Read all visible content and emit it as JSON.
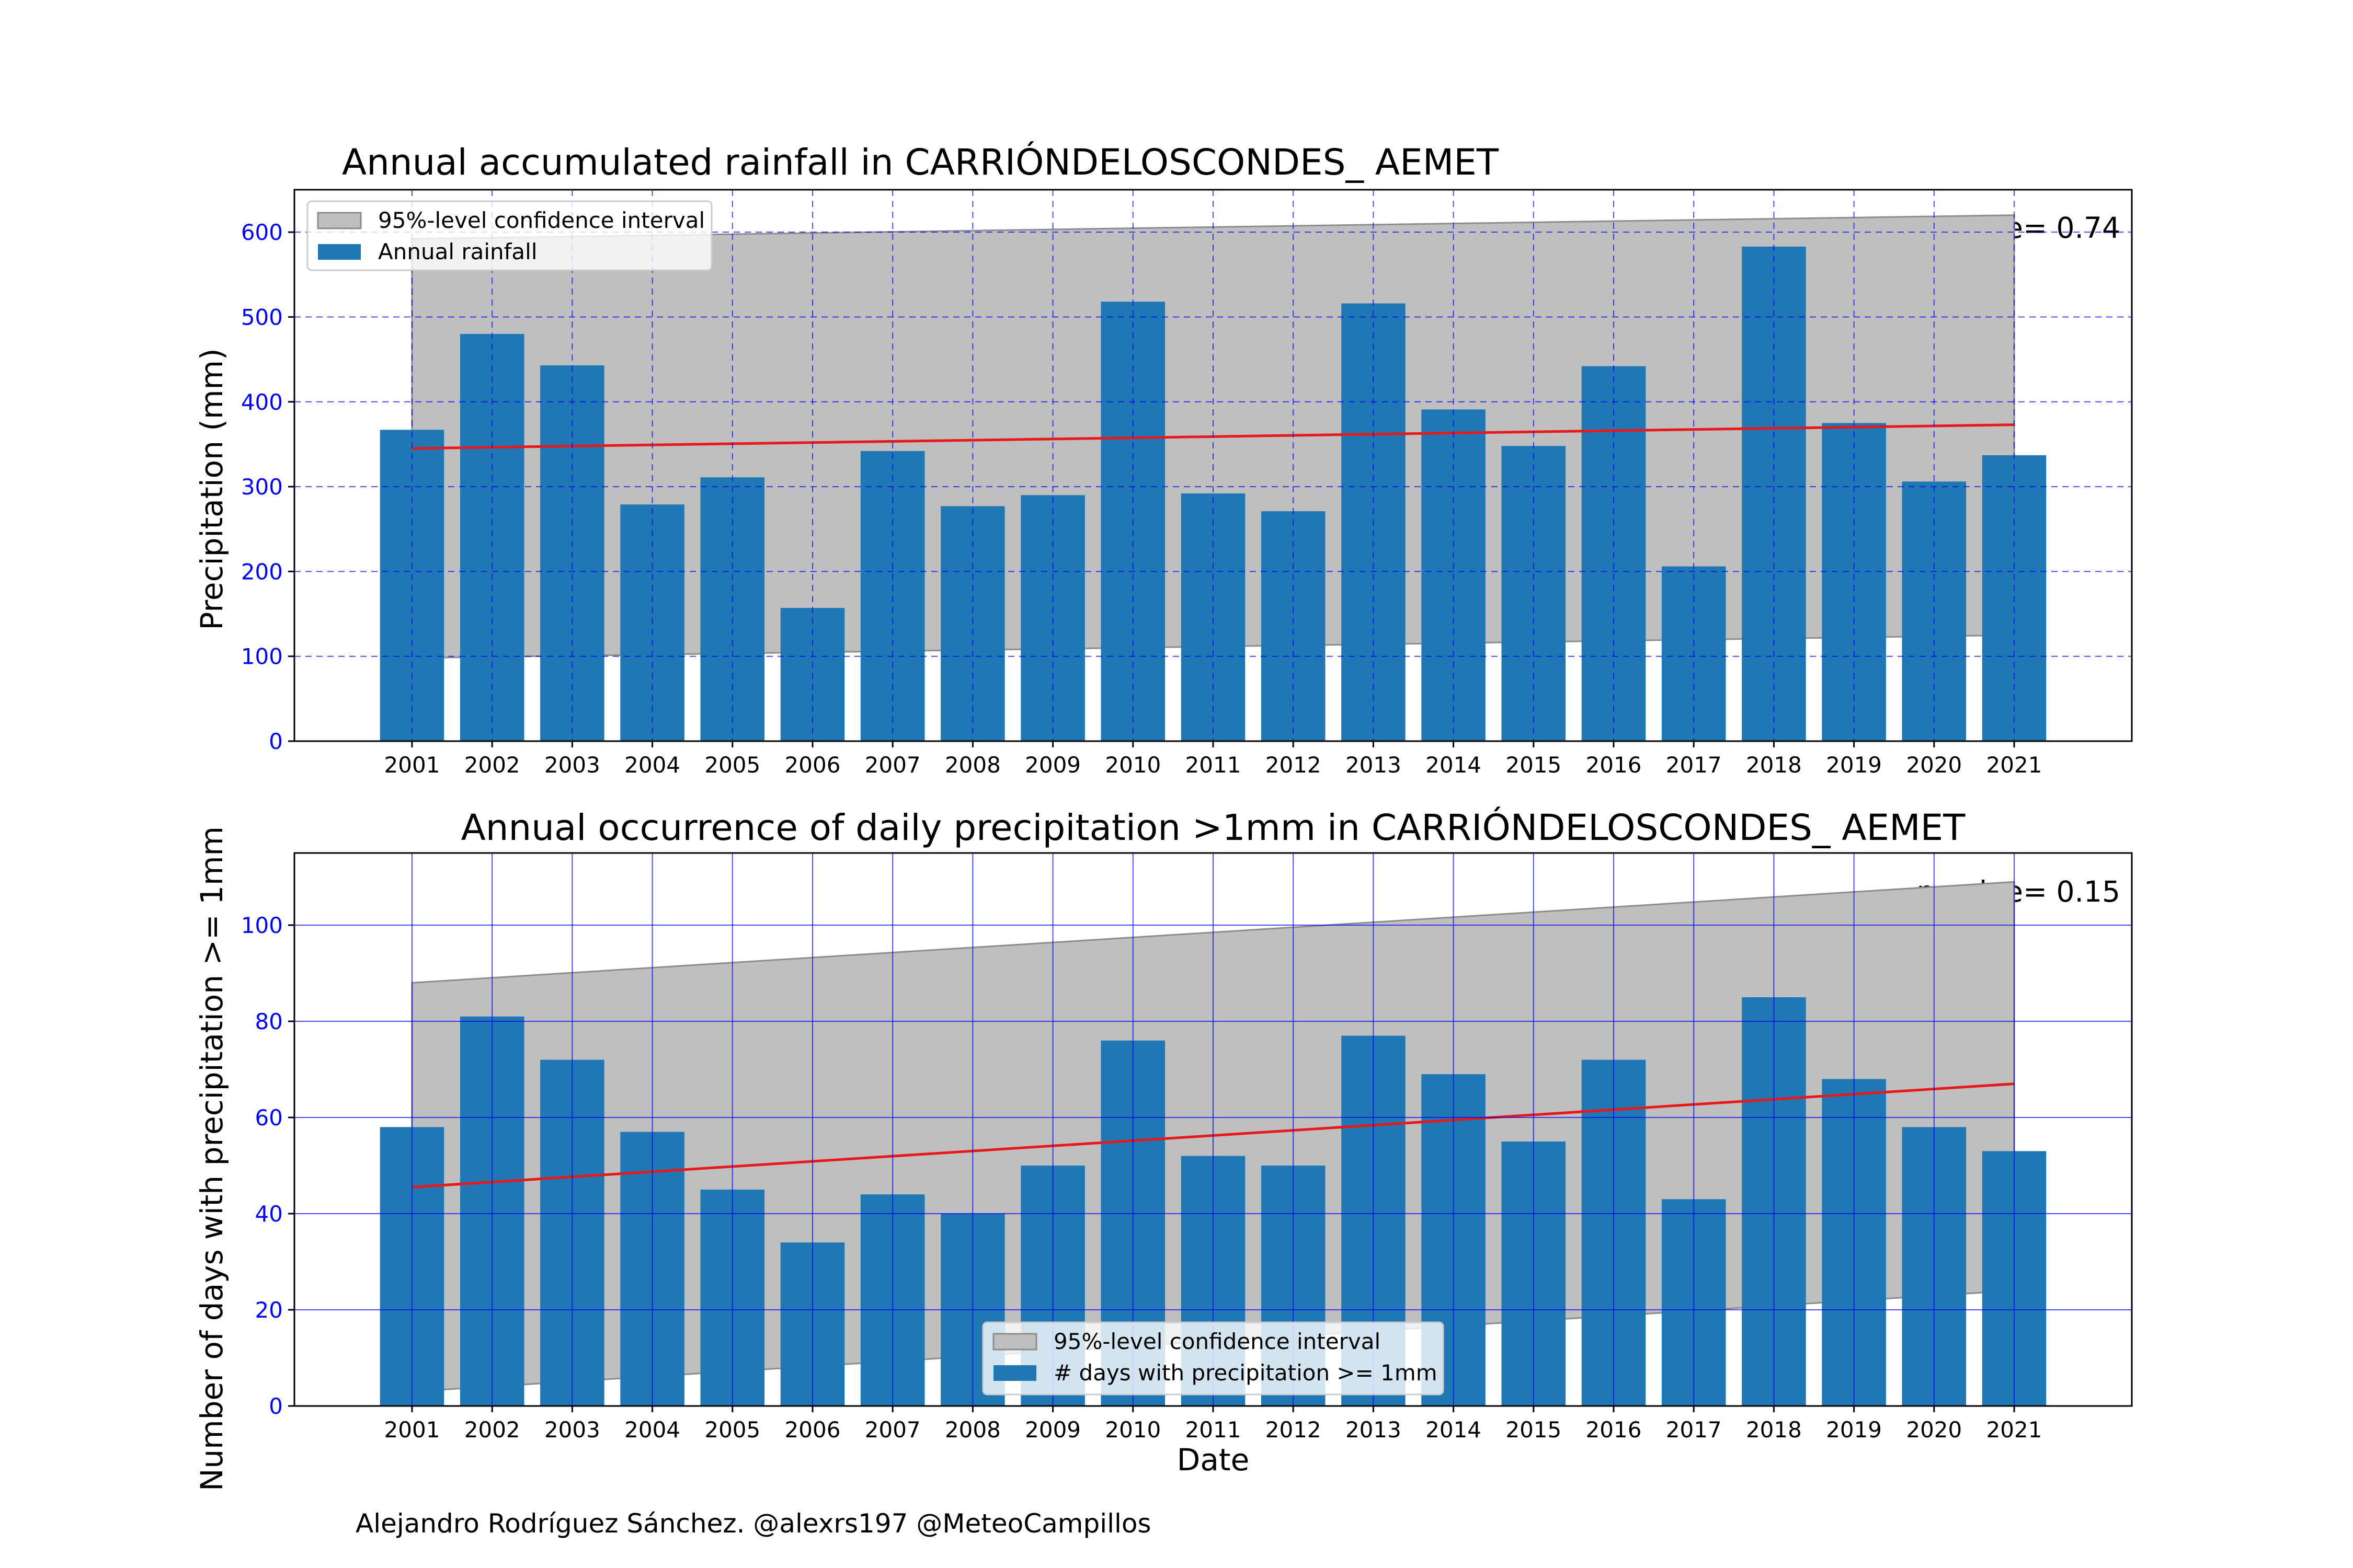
{
  "credit": "Alejandro Rodríguez Sánchez. @alexrs197 @MeteoCampillos",
  "colors": {
    "bar": "#1f77b4",
    "trend": "#e8191a",
    "band": "#bfbfbf",
    "grid": "#0000ff",
    "ytick": "#0000ff"
  },
  "chart_data": [
    {
      "type": "bar",
      "title": "Annual accumulated rainfall in CARRIÓNDELOSCONDES_ AEMET",
      "xlabel": "",
      "ylabel": "Precipitation (mm)",
      "categories": [
        "2001",
        "2002",
        "2003",
        "2004",
        "2005",
        "2006",
        "2007",
        "2008",
        "2009",
        "2010",
        "2011",
        "2012",
        "2013",
        "2014",
        "2015",
        "2016",
        "2017",
        "2018",
        "2019",
        "2020",
        "2021"
      ],
      "series": [
        {
          "name": "Annual rainfall",
          "values": [
            367,
            480,
            443,
            279,
            311,
            157,
            342,
            277,
            290,
            518,
            292,
            271,
            516,
            391,
            348,
            442,
            206,
            583,
            375,
            306,
            337
          ]
        }
      ],
      "trend": {
        "start": 345,
        "end": 373
      },
      "confidence_band": {
        "name": "95%-level confidence interval",
        "upper": [
          592,
          620
        ],
        "lower": [
          98,
          125
        ]
      },
      "annotation": "p-value= 0.74",
      "ylim": [
        0,
        650
      ],
      "yticks": [
        0,
        100,
        200,
        300,
        400,
        500,
        600
      ],
      "grid": "dashed",
      "legend": "top-left"
    },
    {
      "type": "bar",
      "title": "Annual occurrence of daily precipitation >1mm in CARRIÓNDELOSCONDES_ AEMET",
      "xlabel": "Date",
      "ylabel": "Number of days with precipitation >= 1mm",
      "categories": [
        "2001",
        "2002",
        "2003",
        "2004",
        "2005",
        "2006",
        "2007",
        "2008",
        "2009",
        "2010",
        "2011",
        "2012",
        "2013",
        "2014",
        "2015",
        "2016",
        "2017",
        "2018",
        "2019",
        "2020",
        "2021"
      ],
      "series": [
        {
          "name": "# days with precipitation >= 1mm",
          "values": [
            58,
            81,
            72,
            57,
            45,
            34,
            44,
            40,
            50,
            76,
            52,
            50,
            77,
            69,
            55,
            72,
            43,
            85,
            68,
            58,
            53
          ]
        }
      ],
      "trend": {
        "start": 45.5,
        "end": 67
      },
      "confidence_band": {
        "name": "95%-level confidence interval",
        "upper": [
          88,
          109
        ],
        "lower": [
          3,
          24
        ]
      },
      "annotation": "p-value= 0.15",
      "ylim": [
        0,
        115
      ],
      "yticks": [
        0,
        20,
        40,
        60,
        80,
        100
      ],
      "grid": "solid",
      "legend": "bottom-center"
    }
  ]
}
